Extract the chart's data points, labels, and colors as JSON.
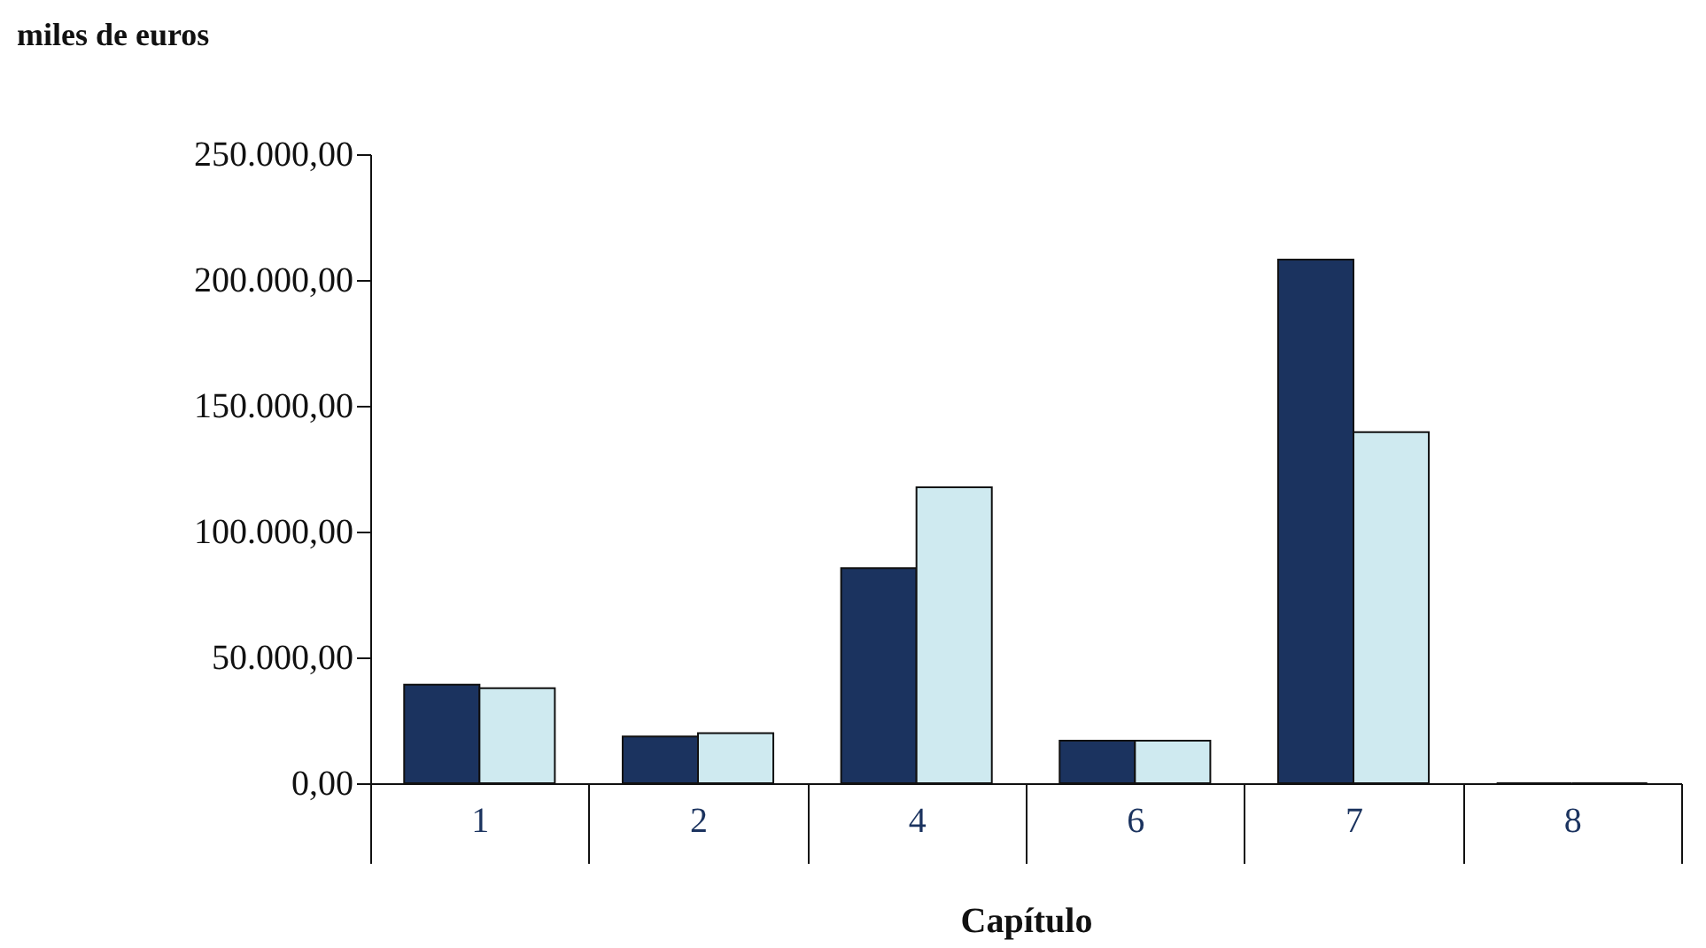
{
  "chart_data": {
    "type": "bar",
    "xlabel": "Capítulo",
    "ylabel": "miles de euros",
    "categories": [
      "1",
      "2",
      "4",
      "6",
      "7",
      "8"
    ],
    "series": [
      {
        "color": "#1b335f",
        "values": [
          39200,
          18600,
          85500,
          16900,
          208100,
          0
        ]
      },
      {
        "color": "#cfeaf0",
        "values": [
          37800,
          19900,
          117600,
          16900,
          139500,
          0
        ]
      }
    ],
    "ylim": [
      0,
      250000
    ],
    "yticks": [
      {
        "value": 0,
        "label": "0,00"
      },
      {
        "value": 50000,
        "label": "50.000,00"
      },
      {
        "value": 100000,
        "label": "100.000,00"
      },
      {
        "value": 150000,
        "label": "150.000,00"
      },
      {
        "value": 200000,
        "label": "200.000,00"
      },
      {
        "value": 250000,
        "label": "250.000,00"
      }
    ],
    "grid": false,
    "legend": false
  }
}
